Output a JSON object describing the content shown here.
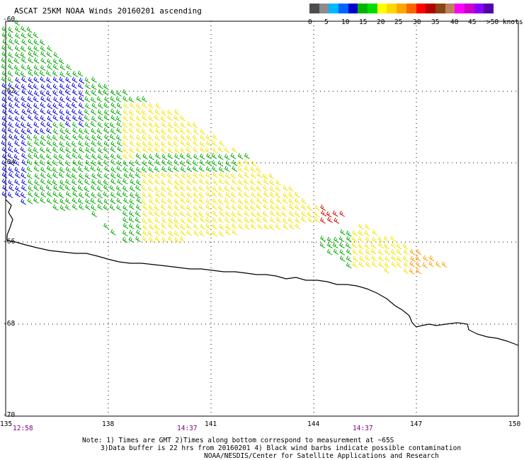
{
  "title": "ASCAT 25KM NOAA Winds 20160201 ascending",
  "legend": {
    "colors": [
      "#4d4d4d",
      "#8c8c8c",
      "#00b8ff",
      "#0064ff",
      "#0000cc",
      "#00b400",
      "#00dc00",
      "#ffff00",
      "#ffd700",
      "#ffa500",
      "#ff6400",
      "#ff0000",
      "#b40000",
      "#8b4513",
      "#c08060",
      "#ff00ff",
      "#cc00cc",
      "#8800ff",
      "#5500aa"
    ],
    "labels": [
      "0",
      "5",
      "10",
      "15",
      "20",
      "25",
      "30",
      "35",
      "40",
      "45",
      ">50 knots"
    ]
  },
  "axes": {
    "lon_labels": [
      "135",
      "138",
      "141",
      "144",
      "147",
      "150"
    ],
    "lat_labels": [
      "-60",
      "-62",
      "-64",
      "-66",
      "-68",
      "-70"
    ]
  },
  "times": [
    "12:58",
    "14:37",
    "14:37"
  ],
  "notes": [
    "Note: 1) Times are GMT 2)Times along bottom correspond to measurement at ~65S",
    "3)Data buffer is 22 hrs from 20160201 4) Black wind barbs indicate possible contamination",
    "NOAA/NESDIS/Center for Satellite Applications and Research"
  ],
  "colors": {
    "blue": "#0000dd",
    "green": "#00a800",
    "yellow": "#f2e400",
    "orange": "#ff9900",
    "red": "#cc0000",
    "time": "#800080"
  }
}
